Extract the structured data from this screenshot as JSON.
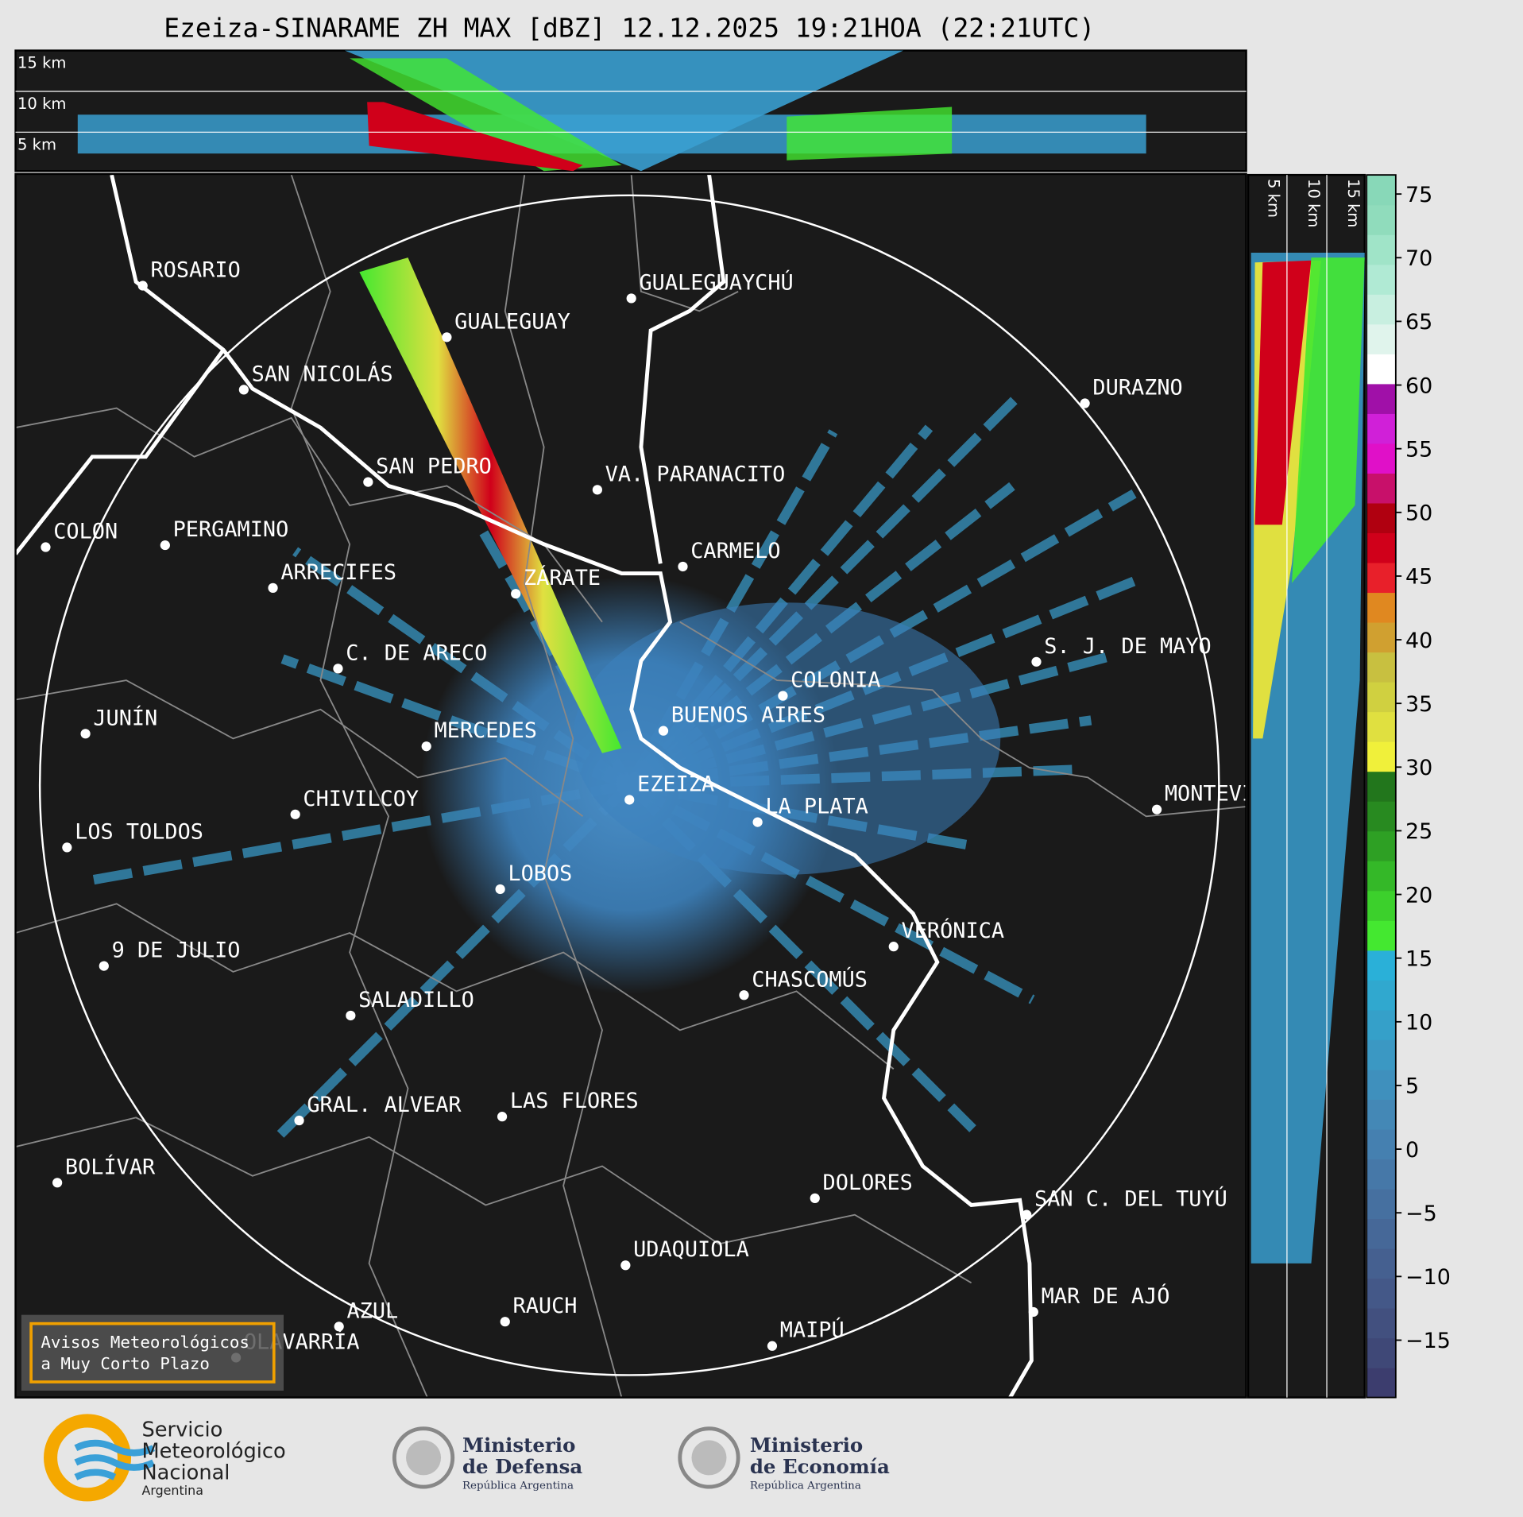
{
  "title": "Ezeiza-SINARAME ZH MAX [dBZ] 12.12.2025 19:21HOA (22:21UTC)",
  "height_labels": [
    "15 km",
    "10 km",
    "5 km"
  ],
  "cities": [
    "ROSARIO",
    "GUALEGUAYCHÚ",
    "GUALEGUAY",
    "SAN NICOLÁS",
    "DURAZNO",
    "SAN PEDRO",
    "VA. PARANACITO",
    "COLON",
    "PERGAMINO",
    "CARMELO",
    "ARRECIFES",
    "ZÁRATE",
    "S. J. DE MAYO",
    "C. DE ARECO",
    "COLONIA",
    "BUENOS AIRES",
    "JUNÍN",
    "MERCEDES",
    "EZEIZA",
    "MONTEVIDEO",
    "CHIVILCOY",
    "LA PLATA",
    "LOS TOLDOS",
    "LOBOS",
    "VERÓNICA",
    "9 DE JULIO",
    "CHASCOMÚS",
    "SALADILLO",
    "GRAL. ALVEAR",
    "LAS FLORES",
    "BOLÍVAR",
    "DOLORES",
    "SAN C. DEL TUYÚ",
    "UDAQUIOLA",
    "MAR DE AJÓ",
    "AZUL",
    "RAUCH",
    "OLAVARRÍA",
    "MAIPÚ"
  ],
  "colorbar": {
    "lim": [
      -19.5,
      76.5
    ],
    "ticks": [
      75,
      70,
      65,
      60,
      55,
      50,
      45,
      40,
      35,
      30,
      25,
      20,
      15,
      10,
      5,
      0,
      {
        "value": -5,
        "label": "−5"
      },
      {
        "value": -10,
        "label": "−10"
      },
      {
        "value": -15,
        "label": "−15"
      }
    ],
    "colors": [
      "#3c3d6e",
      "#3f4877",
      "#42507f",
      "#445888",
      "#456090",
      "#466898",
      "#4670a0",
      "#4678a8",
      "#4580b0",
      "#4488b6",
      "#3f90bd",
      "#3b98c3",
      "#35a0c9",
      "#30a8cf",
      "#2ab0d8",
      "#44e830",
      "#3cd02c",
      "#34b828",
      "#2ea024",
      "#288a20",
      "#22761c",
      "#f0f03a",
      "#e0e040",
      "#d0d040",
      "#c8c040",
      "#d0a030",
      "#e08820",
      "#e8202a",
      "#d0001a",
      "#b00010",
      "#c8106a",
      "#e010c8",
      "#d020d8",
      "#a010a8",
      "#ffffff",
      "#e0f4ec",
      "#c8efe0",
      "#b0ead4",
      "#a0e4c8",
      "#90dcbc",
      "#88d8b8"
    ]
  },
  "notice": [
    "Avisos Meteorológicos",
    "a Muy Corto Plazo"
  ],
  "logos": [
    [
      "Servicio",
      "Meteorológico",
      "Nacional",
      "Argentina"
    ],
    [
      "Ministerio",
      "de Defensa",
      "República Argentina"
    ],
    [
      "Ministerio",
      "de Economía",
      "República Argentina"
    ]
  ]
}
